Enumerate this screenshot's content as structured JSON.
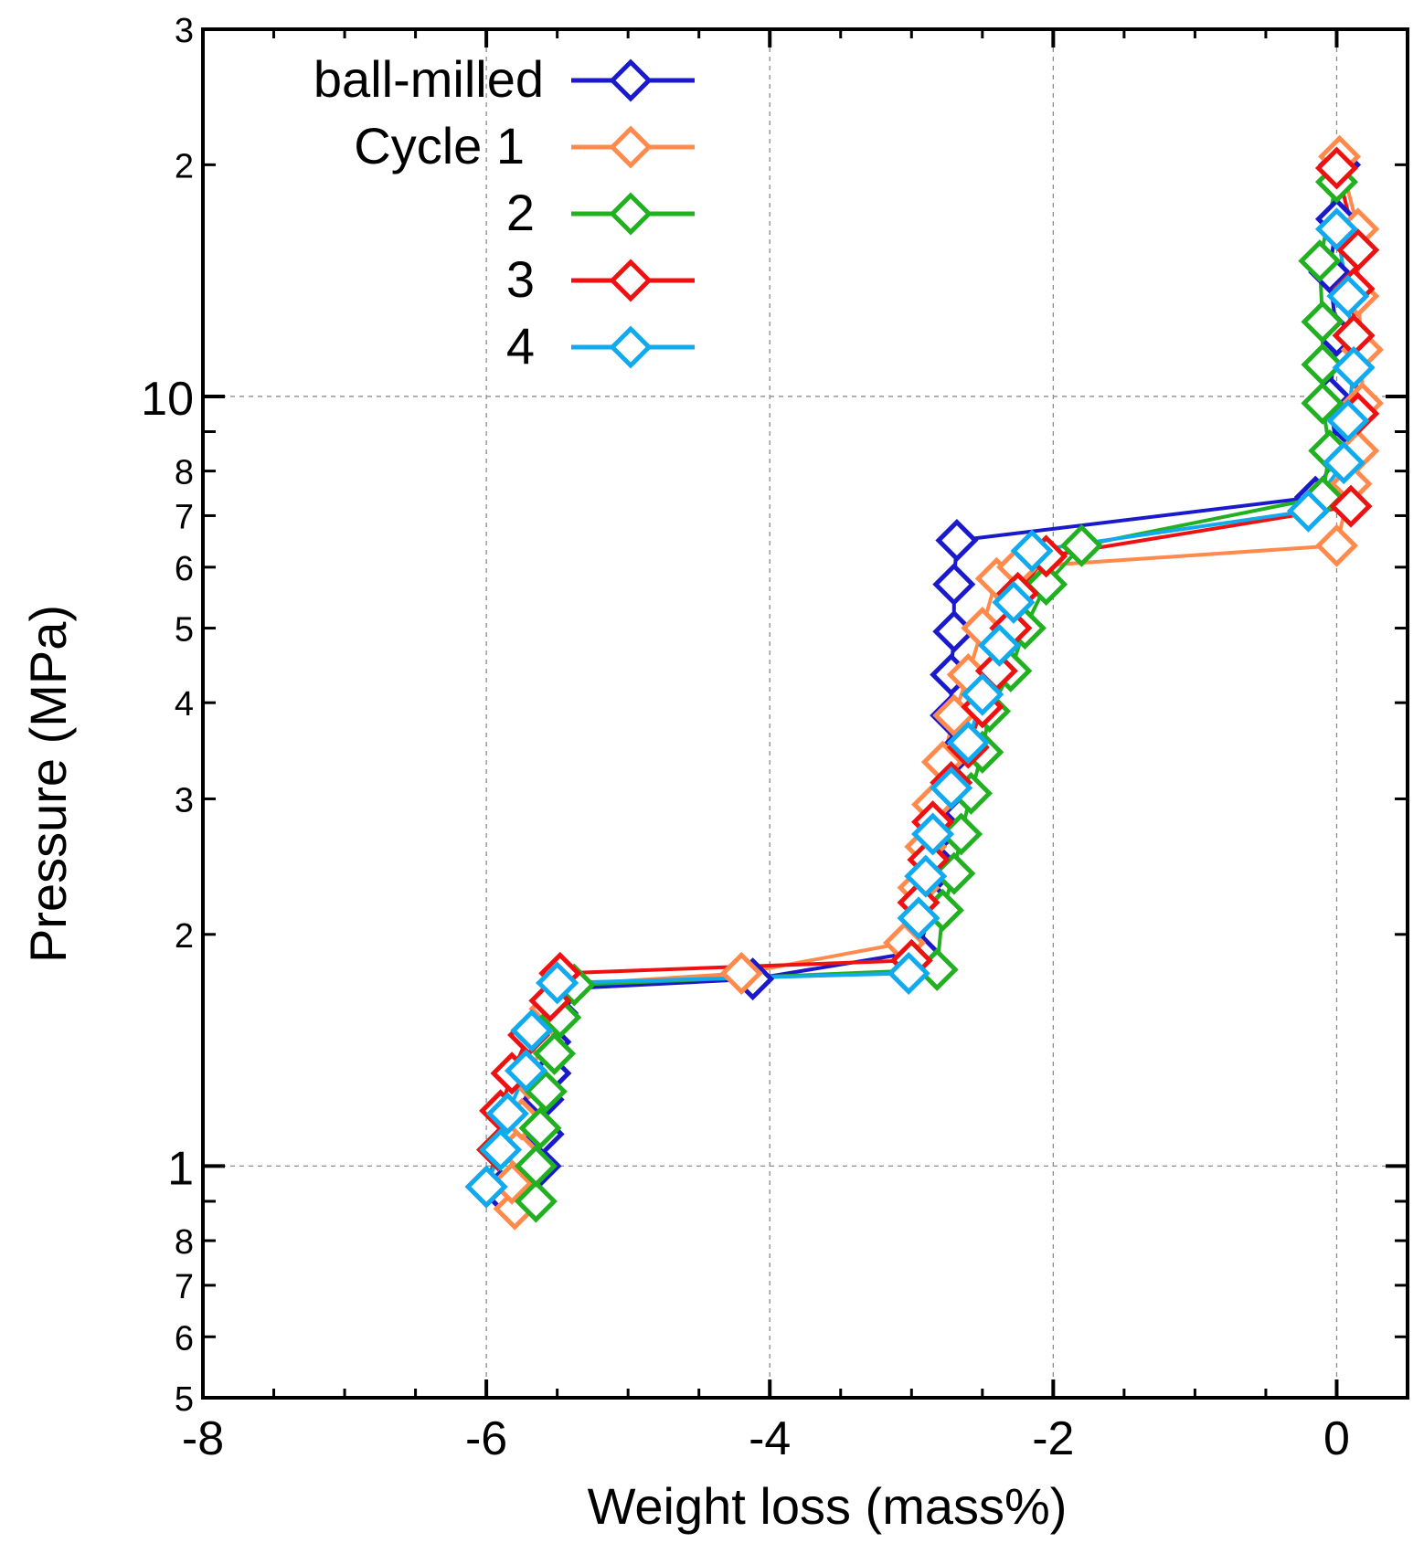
{
  "chart_data": {
    "type": "scatter",
    "xlabel": "Weight loss (mass%)",
    "ylabel": "Pressure (MPa)",
    "xlim": [
      -8,
      0.5
    ],
    "ylim": [
      0.5,
      30
    ],
    "yscale": "log",
    "grid": true,
    "legend_position": "top-left",
    "x_ticks": [
      -8,
      -6,
      -4,
      -2,
      0
    ],
    "x_tick_labels": [
      "-8",
      "-6",
      "-4",
      "-2",
      "0"
    ],
    "y_labeled_ticks": [
      {
        "value": 0.5,
        "label": "5"
      },
      {
        "value": 0.6,
        "label": "6"
      },
      {
        "value": 0.7,
        "label": "7"
      },
      {
        "value": 0.8,
        "label": "8"
      },
      {
        "value": 1,
        "label": "1"
      },
      {
        "value": 2,
        "label": "2"
      },
      {
        "value": 3,
        "label": "3"
      },
      {
        "value": 4,
        "label": "4"
      },
      {
        "value": 5,
        "label": "5"
      },
      {
        "value": 6,
        "label": "6"
      },
      {
        "value": 7,
        "label": "7"
      },
      {
        "value": 8,
        "label": "8"
      },
      {
        "value": 10,
        "label": "10"
      },
      {
        "value": 20,
        "label": "2"
      },
      {
        "value": 30,
        "label": "3"
      }
    ],
    "series": [
      {
        "name": "ball-milled",
        "color": "#1a1acc",
        "points": [
          [
            -5.9,
            0.93
          ],
          [
            -5.62,
            1.0
          ],
          [
            -5.6,
            1.1
          ],
          [
            -5.6,
            1.22
          ],
          [
            -5.55,
            1.32
          ],
          [
            -5.55,
            1.45
          ],
          [
            -5.5,
            1.58
          ],
          [
            -5.45,
            1.7
          ],
          [
            -4.12,
            1.75
          ],
          [
            -2.95,
            1.9
          ],
          [
            -2.85,
            2.2
          ],
          [
            -2.8,
            2.45
          ],
          [
            -2.78,
            2.75
          ],
          [
            -2.75,
            3.05
          ],
          [
            -2.72,
            3.4
          ],
          [
            -2.72,
            3.85
          ],
          [
            -2.72,
            4.35
          ],
          [
            -2.7,
            4.95
          ],
          [
            -2.7,
            5.7
          ],
          [
            -2.68,
            6.5
          ],
          [
            -0.15,
            7.4
          ],
          [
            0.0,
            8.5
          ],
          [
            -0.05,
            10.0
          ],
          [
            0.0,
            12.0
          ],
          [
            -0.05,
            14.5
          ],
          [
            0.0,
            17.0
          ],
          [
            0.02,
            20.0
          ]
        ]
      },
      {
        "name": "Cycle 1",
        "color": "#ff8a4c",
        "points": [
          [
            -5.8,
            0.88
          ],
          [
            -5.82,
            0.95
          ],
          [
            -5.78,
            1.05
          ],
          [
            -5.75,
            1.15
          ],
          [
            -5.7,
            1.3
          ],
          [
            -5.6,
            1.45
          ],
          [
            -5.55,
            1.6
          ],
          [
            -5.45,
            1.72
          ],
          [
            -4.2,
            1.78
          ],
          [
            -3.05,
            1.95
          ],
          [
            -2.95,
            2.3
          ],
          [
            -2.9,
            2.6
          ],
          [
            -2.85,
            2.95
          ],
          [
            -2.78,
            3.35
          ],
          [
            -2.7,
            3.85
          ],
          [
            -2.6,
            4.35
          ],
          [
            -2.5,
            5.0
          ],
          [
            -2.4,
            5.8
          ],
          [
            -2.25,
            6.0
          ],
          [
            0.0,
            6.4
          ],
          [
            0.1,
            7.7
          ],
          [
            0.15,
            8.5
          ],
          [
            0.18,
            9.8
          ],
          [
            0.18,
            11.5
          ],
          [
            0.15,
            13.5
          ],
          [
            0.15,
            16.5
          ],
          [
            0.02,
            20.5
          ]
        ]
      },
      {
        "name": "2",
        "color": "#20b020",
        "points": [
          [
            -5.65,
            0.9
          ],
          [
            -5.65,
            1.0
          ],
          [
            -5.62,
            1.12
          ],
          [
            -5.58,
            1.25
          ],
          [
            -5.52,
            1.4
          ],
          [
            -5.48,
            1.56
          ],
          [
            -5.38,
            1.72
          ],
          [
            -2.82,
            1.8
          ],
          [
            -2.78,
            2.15
          ],
          [
            -2.7,
            2.4
          ],
          [
            -2.65,
            2.7
          ],
          [
            -2.58,
            3.05
          ],
          [
            -2.5,
            3.45
          ],
          [
            -2.45,
            3.9
          ],
          [
            -2.3,
            4.4
          ],
          [
            -2.2,
            5.0
          ],
          [
            -2.05,
            5.7
          ],
          [
            -1.8,
            6.4
          ],
          [
            -0.1,
            7.4
          ],
          [
            -0.05,
            8.5
          ],
          [
            -0.1,
            9.8
          ],
          [
            -0.1,
            11.0
          ],
          [
            -0.1,
            12.5
          ],
          [
            -0.12,
            15.0
          ],
          [
            0.0,
            19.0
          ]
        ]
      },
      {
        "name": "3",
        "color": "#ee1111",
        "points": [
          [
            -6.0,
            0.94
          ],
          [
            -5.92,
            1.05
          ],
          [
            -5.9,
            1.18
          ],
          [
            -5.82,
            1.32
          ],
          [
            -5.7,
            1.48
          ],
          [
            -5.55,
            1.64
          ],
          [
            -5.48,
            1.78
          ],
          [
            -3.0,
            1.85
          ],
          [
            -2.95,
            2.2
          ],
          [
            -2.88,
            2.5
          ],
          [
            -2.85,
            2.8
          ],
          [
            -2.72,
            3.15
          ],
          [
            -2.6,
            3.5
          ],
          [
            -2.5,
            3.95
          ],
          [
            -2.4,
            4.4
          ],
          [
            -2.3,
            5.0
          ],
          [
            -2.25,
            5.55
          ],
          [
            -2.05,
            6.2
          ],
          [
            0.1,
            7.2
          ],
          [
            0.15,
            9.5
          ],
          [
            0.12,
            12.0
          ],
          [
            0.12,
            13.8
          ],
          [
            0.15,
            15.5
          ],
          [
            0.0,
            19.8
          ]
        ]
      },
      {
        "name": "4",
        "color": "#11aaee",
        "points": [
          [
            -6.0,
            0.94
          ],
          [
            -5.9,
            1.05
          ],
          [
            -5.85,
            1.17
          ],
          [
            -5.72,
            1.33
          ],
          [
            -5.68,
            1.5
          ],
          [
            -5.5,
            1.73
          ],
          [
            -3.02,
            1.78
          ],
          [
            -2.95,
            2.1
          ],
          [
            -2.9,
            2.38
          ],
          [
            -2.85,
            2.7
          ],
          [
            -2.72,
            3.1
          ],
          [
            -2.6,
            3.55
          ],
          [
            -2.5,
            4.1
          ],
          [
            -2.38,
            4.75
          ],
          [
            -2.28,
            5.4
          ],
          [
            -2.15,
            6.3
          ],
          [
            -0.2,
            7.1
          ],
          [
            0.05,
            8.2
          ],
          [
            0.08,
            9.3
          ],
          [
            0.12,
            10.9
          ],
          [
            0.08,
            13.5
          ],
          [
            0.0,
            16.5
          ]
        ]
      }
    ]
  }
}
